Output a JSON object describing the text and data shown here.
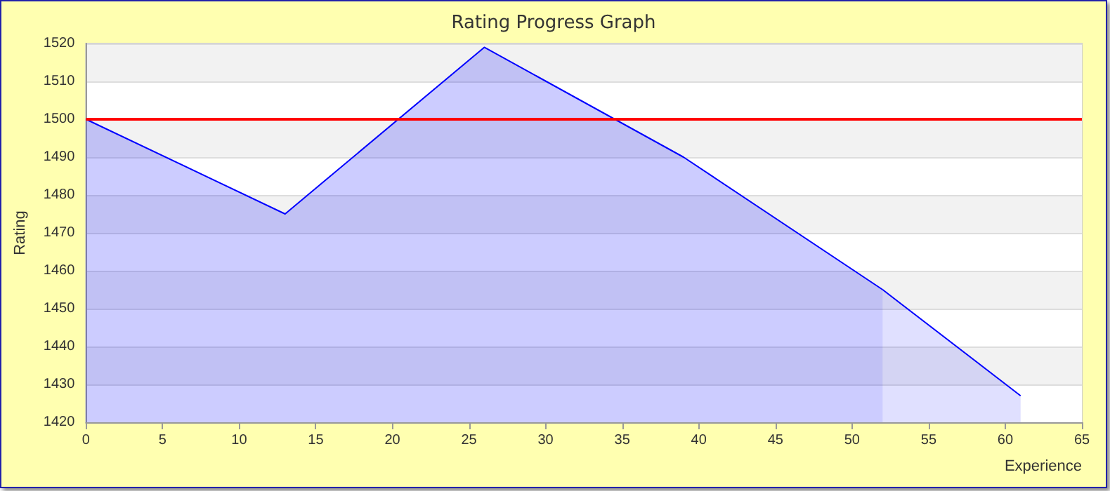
{
  "chart_data": {
    "type": "area",
    "title": "Rating Progress Graph",
    "xlabel": "Experience",
    "ylabel": "Rating",
    "series": [
      {
        "color": "#0000ff",
        "x": [
          0,
          13,
          26,
          39,
          52
        ],
        "values": [
          1500,
          1475,
          1519,
          1490,
          1455
        ]
      },
      {
        "color": "#0000ff",
        "x": [
          52,
          61
        ],
        "values": [
          1455,
          1427
        ]
      }
    ],
    "xlim": [
      0,
      65
    ],
    "xticks": [
      0,
      5,
      10,
      15,
      20,
      25,
      30,
      35,
      40,
      45,
      50,
      55,
      60,
      65
    ],
    "ylim": [
      1420,
      1520
    ],
    "yticks": [
      1420,
      1430,
      1440,
      1450,
      1460,
      1470,
      1480,
      1490,
      1500,
      1510,
      1520
    ],
    "ref_lines": [
      {
        "axis": "y",
        "value": 1500,
        "color": "#ff0000"
      }
    ],
    "grid": "y"
  }
}
